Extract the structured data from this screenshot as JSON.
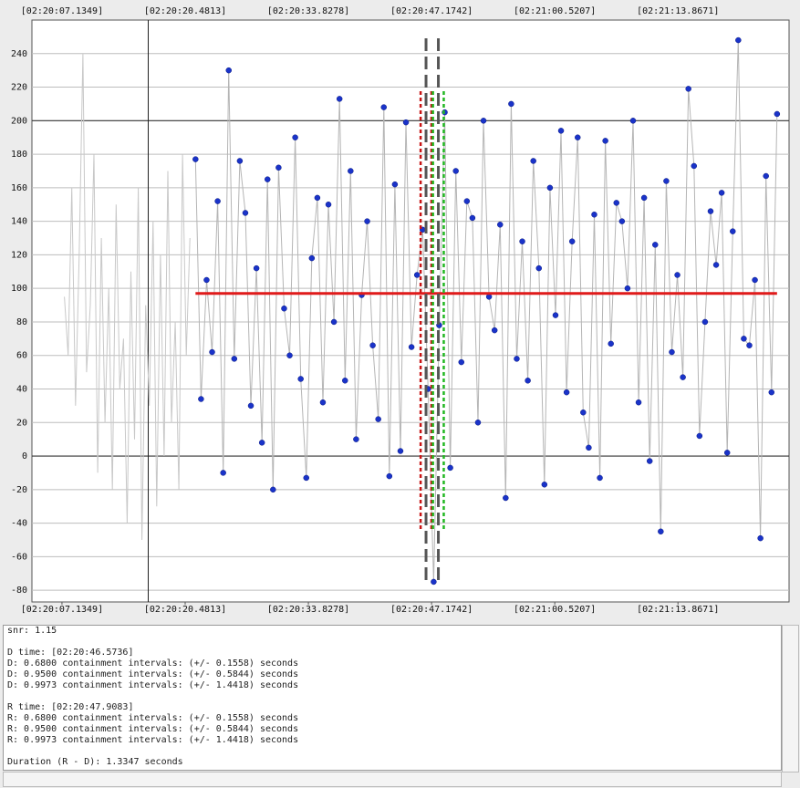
{
  "chart_data": {
    "type": "scatter",
    "xlim": [
      3.88,
      85.9
    ],
    "ylim": [
      -87,
      260
    ],
    "xticks": [
      {
        "value": 7.1349,
        "label": "[02:20:07.1349]"
      },
      {
        "value": 20.4813,
        "label": "[02:20:20.4813]"
      },
      {
        "value": 33.8278,
        "label": "[02:20:33.8278]"
      },
      {
        "value": 47.1742,
        "label": "[02:20:47.1742]"
      },
      {
        "value": 60.5207,
        "label": "[02:21:00.5207]"
      },
      {
        "value": 73.8671,
        "label": "[02:21:13.8671]"
      }
    ],
    "yticks": [
      -80,
      -60,
      -40,
      -20,
      0,
      20,
      40,
      60,
      80,
      100,
      120,
      140,
      160,
      180,
      200,
      220,
      240
    ],
    "grid": true,
    "major_step": 200,
    "grid_color": "#bdbdbd",
    "major_color": "#333333",
    "cursor_x": 16.48,
    "series": [
      {
        "color": "#c8c8c8",
        "x": [
          7.4,
          7.8,
          8.2,
          8.6,
          9.0,
          9.4,
          9.8,
          10.2,
          10.6,
          11.0,
          11.4,
          11.8,
          12.2,
          12.6,
          13.0,
          13.4,
          13.8,
          14.2,
          14.6,
          15.0,
          15.4,
          15.8,
          16.2,
          16.6,
          17.0,
          17.4,
          17.8,
          18.2,
          18.6,
          19.0,
          19.4,
          19.8,
          20.2,
          20.6,
          21.0
        ],
        "values": [
          95,
          60,
          160,
          30,
          120,
          240,
          50,
          90,
          180,
          -10,
          130,
          20,
          100,
          -20,
          150,
          40,
          70,
          -40,
          110,
          10,
          160,
          -50,
          90,
          30,
          140,
          -30,
          120,
          0,
          170,
          20,
          80,
          -20,
          180,
          60,
          130
        ]
      },
      {
        "color": "#b5b5b5",
        "marker_color": "#1a33c9",
        "x": [
          21.6,
          22.2,
          22.8,
          23.4,
          24.0,
          24.6,
          25.2,
          25.8,
          26.4,
          27.0,
          27.6,
          28.2,
          28.8,
          29.4,
          30.0,
          30.6,
          31.2,
          31.8,
          32.4,
          33.0,
          33.6,
          34.2,
          34.8,
          35.4,
          36.0,
          36.6,
          37.2,
          37.8,
          38.4,
          39.0,
          39.6,
          40.2,
          40.8,
          41.4,
          42.0,
          42.6,
          43.2,
          43.8,
          44.4,
          45.0,
          45.6,
          46.2,
          46.8,
          47.4,
          48.0,
          48.6,
          49.2,
          49.8,
          50.4,
          51.0,
          51.6,
          52.2,
          52.8,
          53.4,
          54.0,
          54.6,
          55.2,
          55.8,
          56.4,
          57.0,
          57.6,
          58.2,
          58.8,
          59.4,
          60.0,
          60.6,
          61.2,
          61.8,
          62.4,
          63.0,
          63.6,
          64.2,
          64.8,
          65.4,
          66.0,
          66.6,
          67.2,
          67.8,
          68.4,
          69.0,
          69.6,
          70.2,
          70.8,
          71.4,
          72.0,
          72.6,
          73.2,
          73.8,
          74.4,
          75.0,
          75.6,
          76.2,
          76.8,
          77.4,
          78.0,
          78.6,
          79.2,
          79.8,
          80.4,
          81.0,
          81.6,
          82.2,
          82.8,
          83.4,
          84.0,
          84.6
        ],
        "values": [
          177,
          34,
          105,
          62,
          152,
          -10,
          230,
          58,
          176,
          145,
          30,
          112,
          8,
          165,
          -20,
          172,
          88,
          60,
          190,
          46,
          -13,
          118,
          154,
          32,
          150,
          80,
          213,
          45,
          170,
          10,
          96,
          140,
          66,
          22,
          208,
          -12,
          162,
          3,
          199,
          65,
          108,
          135,
          40,
          -75,
          78,
          205,
          -7,
          170,
          56,
          152,
          142,
          20,
          200,
          95,
          75,
          138,
          -25,
          210,
          58,
          128,
          45,
          176,
          112,
          -17,
          160,
          84,
          194,
          38,
          128,
          190,
          26,
          5,
          144,
          -13,
          188,
          67,
          151,
          140,
          100,
          200,
          32,
          154,
          -3,
          126,
          -45,
          164,
          62,
          108,
          47,
          219,
          173,
          12,
          80,
          146,
          114,
          157,
          2,
          134,
          248,
          70,
          66,
          105,
          -49,
          167,
          38,
          204
        ]
      }
    ],
    "mean": 97,
    "mean_color": "#e01b1b",
    "d_time": 46.5736,
    "r_time": 47.9083,
    "interval": 0.5844,
    "time_color": "#555555",
    "d_color": "#c81414",
    "r_color": "#22b822"
  },
  "log": {
    "blocks": [
      [
        "snr: 1.15"
      ],
      [
        "D time: [02:20:46.5736]",
        "D: 0.6800 containment intervals: (+/- 0.1558) seconds",
        "D: 0.9500 containment intervals: (+/- 0.5844) seconds",
        "D: 0.9973 containment intervals: (+/- 1.4418) seconds"
      ],
      [
        "R time: [02:20:47.9083]",
        "R: 0.6800 containment intervals: (+/- 0.1558) seconds",
        "R: 0.9500 containment intervals: (+/- 0.5844) seconds",
        "R: 0.9973 containment intervals: (+/- 1.4418) seconds"
      ],
      [
        "Duration (R - D): 1.3347 seconds"
      ]
    ]
  }
}
